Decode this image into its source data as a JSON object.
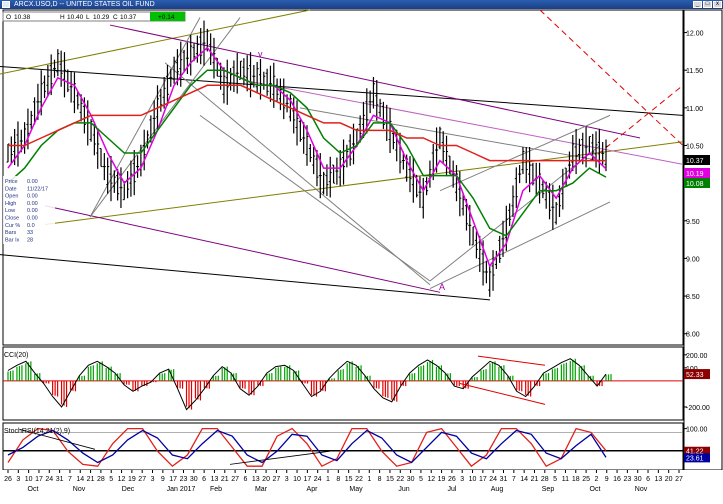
{
  "window": {
    "title": "ARCX.USO,D -- UNITED STATES OIL FUND",
    "minimize": "_",
    "maximize": "□",
    "close": "x"
  },
  "quote": {
    "open_label": "O",
    "open": "10.38",
    "high_label": "H",
    "high": "10.40",
    "low_label": "L",
    "low": "10.29",
    "close_label": "C",
    "close": "10.37",
    "change": "+0.14"
  },
  "info_panel": [
    {
      "label": "Price",
      "value": "0.00"
    },
    {
      "label": "Date",
      "value": "11/22/17"
    },
    {
      "label": "Open",
      "value": "0.00"
    },
    {
      "label": "High",
      "value": "0.00"
    },
    {
      "label": "Low",
      "value": "0.00"
    },
    {
      "label": "Close",
      "value": "0.00"
    },
    {
      "label": "Cur %",
      "value": "0.0"
    },
    {
      "label": "Bars",
      "value": "33"
    },
    {
      "label": "Bar Ix",
      "value": "28"
    }
  ],
  "annotations": {
    "top_mark": "v",
    "bottom_mark": "A"
  },
  "chart_data": [
    {
      "type": "line",
      "panel": "price",
      "ylim": [
        7.85,
        12.3
      ],
      "yticks": [
        "12.00",
        "11.50",
        "11.00",
        "10.50",
        "10.00",
        "9.50",
        "9.00",
        "8.50",
        "8.00"
      ],
      "price_tags": [
        {
          "value": "10.37",
          "color": "#000000",
          "text_color": "#ffffff"
        },
        {
          "value": "10.19",
          "color": "#e000e0",
          "text_color": "#ffffff"
        },
        {
          "value": "10.08",
          "color": "#008000",
          "text_color": "#ffffff"
        }
      ],
      "series": [
        {
          "color": "#000000",
          "values": [
            10.4,
            10.6,
            11.2,
            11.6,
            11.2,
            10.7,
            10.1,
            9.9,
            10.3,
            11.0,
            11.5,
            11.7,
            11.9,
            11.3,
            11.5,
            11.4,
            11.3,
            11.0,
            10.5,
            10.0,
            10.2,
            10.6,
            11.2,
            10.7,
            10.2,
            9.8,
            10.6,
            10.0,
            9.3,
            8.7,
            9.4,
            10.3,
            10.0,
            9.6,
            10.4,
            10.5,
            10.37
          ]
        },
        {
          "color": "#e000e0",
          "values": [
            10.2,
            10.5,
            11.0,
            11.4,
            11.3,
            10.9,
            10.4,
            10.0,
            10.2,
            10.7,
            11.3,
            11.6,
            11.8,
            11.5,
            11.4,
            11.3,
            11.3,
            11.1,
            10.7,
            10.2,
            10.2,
            10.5,
            10.9,
            10.8,
            10.3,
            9.9,
            10.3,
            10.1,
            9.5,
            8.9,
            9.2,
            9.9,
            10.1,
            9.8,
            10.2,
            10.4,
            10.19
          ]
        },
        {
          "color": "#008000",
          "values": [
            10.0,
            10.2,
            10.5,
            10.7,
            10.8,
            10.8,
            10.6,
            10.4,
            10.4,
            10.7,
            11.0,
            11.3,
            11.5,
            11.5,
            11.4,
            11.3,
            11.3,
            11.2,
            11.0,
            10.6,
            10.4,
            10.5,
            10.8,
            10.8,
            10.5,
            10.1,
            10.1,
            10.1,
            9.8,
            9.4,
            9.3,
            9.6,
            9.9,
            9.9,
            10.0,
            10.2,
            10.08
          ]
        },
        {
          "color": "#e0201a",
          "values": [
            10.5,
            10.5,
            10.6,
            10.7,
            10.8,
            10.9,
            10.9,
            10.9,
            10.9,
            11.0,
            11.1,
            11.2,
            11.3,
            11.3,
            11.3,
            11.2,
            11.1,
            11.0,
            10.9,
            10.8,
            10.8,
            10.7,
            10.7,
            10.7,
            10.6,
            10.6,
            10.5,
            10.5,
            10.4,
            10.3,
            10.3,
            10.3,
            10.3,
            10.3,
            10.3,
            10.3,
            10.3
          ]
        }
      ]
    },
    {
      "type": "bar",
      "panel": "cci",
      "title": "CCI(20)",
      "ylim": [
        -300,
        260
      ],
      "yticks": [
        "200.00",
        "100",
        "-200.00"
      ],
      "price_tags": [
        {
          "value": "52.33",
          "color": "#8b0000",
          "text_color": "#ffffff"
        }
      ],
      "values": [
        80,
        120,
        150,
        60,
        -20,
        -120,
        -200,
        -80,
        40,
        120,
        150,
        110,
        60,
        -30,
        -80,
        -40,
        -10,
        60,
        90,
        -60,
        -220,
        -150,
        -60,
        40,
        110,
        60,
        -60,
        -110,
        -40,
        60,
        110,
        120,
        80,
        -20,
        -120,
        -80,
        20,
        90,
        150,
        120,
        40,
        -60,
        -130,
        -160,
        -40,
        60,
        120,
        160,
        120,
        60,
        -40,
        -60,
        30,
        90,
        150,
        120,
        40,
        -80,
        -120,
        -40,
        60,
        100,
        140,
        170,
        120,
        40,
        -40,
        52.33
      ]
    },
    {
      "type": "line",
      "panel": "stochrsi",
      "title": "StochRSI(14,21(2),9)",
      "ylim": [
        -10,
        115
      ],
      "yticks": [
        "100.00",
        "41.22",
        "23.61"
      ],
      "price_tags": [
        {
          "value": "41.22",
          "color": "#8b0000",
          "text_color": "#ffffff"
        },
        {
          "value": "23.61",
          "color": "#0000a0",
          "text_color": "#ffffff"
        }
      ],
      "series": [
        {
          "color": "#e0201a",
          "values": [
            10,
            70,
            100,
            95,
            40,
            5,
            0,
            60,
            100,
            100,
            40,
            0,
            30,
            100,
            100,
            50,
            0,
            0,
            80,
            100,
            60,
            0,
            20,
            100,
            100,
            40,
            0,
            10,
            90,
            100,
            50,
            0,
            30,
            100,
            100,
            60,
            0,
            20,
            100,
            90,
            41.22
          ]
        },
        {
          "color": "#0000a0",
          "values": [
            30,
            50,
            80,
            95,
            70,
            35,
            10,
            30,
            70,
            95,
            75,
            30,
            20,
            60,
            95,
            80,
            30,
            10,
            40,
            85,
            80,
            30,
            15,
            60,
            95,
            75,
            30,
            10,
            50,
            90,
            80,
            35,
            20,
            60,
            95,
            85,
            35,
            20,
            55,
            85,
            23.61
          ]
        }
      ]
    }
  ],
  "x_axis": {
    "labels": [
      "26",
      "3",
      "10",
      "17",
      "24",
      "31",
      "7",
      "14",
      "21",
      "28",
      "5",
      "12",
      "19",
      "27",
      "3",
      "9",
      "17",
      "23",
      "30",
      "6",
      "13",
      "21",
      "27",
      "6",
      "13",
      "20",
      "27",
      "3",
      "10",
      "17",
      "24",
      "1",
      "8",
      "15",
      "22",
      "1",
      "8",
      "15",
      "22",
      "30",
      "5",
      "12",
      "19",
      "26",
      "3",
      "10",
      "17",
      "24",
      "31",
      "7",
      "14",
      "21",
      "28",
      "5",
      "11",
      "18",
      "25",
      "2",
      "9",
      "16",
      "23",
      "30",
      "6",
      "13",
      "20",
      "27"
    ],
    "months": [
      "Oct",
      "Nov",
      "Dec",
      "Jan 2017",
      "Feb",
      "Mar",
      "Apr",
      "May",
      "Jun",
      "Jul",
      "Aug",
      "Sep",
      "Oct",
      "Nov"
    ]
  }
}
